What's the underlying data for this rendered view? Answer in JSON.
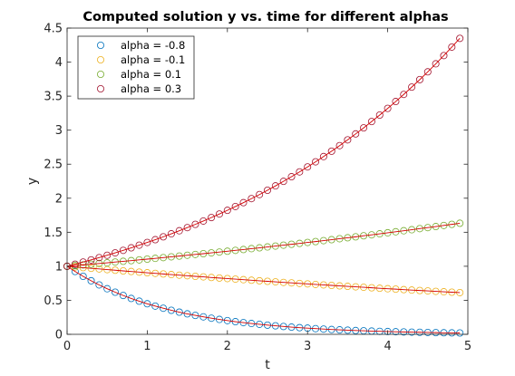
{
  "chart_data": {
    "type": "line",
    "title": "Computed solution y vs. time for different alphas",
    "xlabel": "t",
    "ylabel": "y",
    "xlim": [
      0,
      5
    ],
    "ylim": [
      0,
      4.5
    ],
    "xticks": [
      "0",
      "1",
      "2",
      "3",
      "4",
      "5"
    ],
    "yticks": [
      "0",
      "0.5",
      "1",
      "1.5",
      "2",
      "2.5",
      "3",
      "3.5",
      "4",
      "4.5"
    ],
    "grid": false,
    "legend_position": "top-left",
    "marker": "circle",
    "line_color": "#d40000",
    "t": [
      0.0,
      0.1,
      0.2,
      0.3,
      0.4,
      0.5,
      0.6,
      0.7,
      0.8,
      0.9,
      1.0,
      1.1,
      1.2,
      1.3,
      1.4,
      1.5,
      1.6,
      1.7,
      1.8,
      1.9,
      2.0,
      2.1,
      2.2,
      2.3,
      2.4,
      2.5,
      2.6,
      2.7,
      2.8,
      2.9,
      3.0,
      3.1,
      3.2,
      3.3,
      3.4,
      3.5,
      3.6,
      3.7,
      3.8,
      3.9,
      4.0,
      4.1,
      4.2,
      4.3,
      4.4,
      4.5,
      4.6,
      4.7,
      4.8,
      4.9
    ],
    "series": [
      {
        "name": "alpha = -0.8",
        "color": "#0072bd",
        "values": [
          1.0,
          0.923,
          0.852,
          0.787,
          0.726,
          0.67,
          0.619,
          0.571,
          0.527,
          0.487,
          0.449,
          0.415,
          0.383,
          0.353,
          0.326,
          0.301,
          0.278,
          0.257,
          0.237,
          0.219,
          0.202,
          0.186,
          0.172,
          0.159,
          0.147,
          0.135,
          0.125,
          0.115,
          0.106,
          0.098,
          0.091,
          0.084,
          0.077,
          0.071,
          0.066,
          0.061,
          0.056,
          0.052,
          0.048,
          0.044,
          0.041,
          0.038,
          0.035,
          0.032,
          0.03,
          0.027,
          0.025,
          0.023,
          0.021,
          0.02
        ]
      },
      {
        "name": "alpha = -0.1",
        "color": "#edb120",
        "values": [
          1.0,
          0.99,
          0.98,
          0.97,
          0.961,
          0.951,
          0.942,
          0.932,
          0.923,
          0.914,
          0.905,
          0.896,
          0.887,
          0.878,
          0.869,
          0.861,
          0.852,
          0.844,
          0.835,
          0.827,
          0.819,
          0.811,
          0.803,
          0.795,
          0.787,
          0.779,
          0.771,
          0.763,
          0.756,
          0.748,
          0.741,
          0.733,
          0.726,
          0.719,
          0.712,
          0.705,
          0.698,
          0.691,
          0.684,
          0.677,
          0.67,
          0.664,
          0.657,
          0.65,
          0.644,
          0.638,
          0.631,
          0.625,
          0.619,
          0.613
        ]
      },
      {
        "name": "alpha = 0.1",
        "color": "#77ac30",
        "values": [
          1.0,
          1.01,
          1.02,
          1.03,
          1.041,
          1.051,
          1.062,
          1.073,
          1.083,
          1.094,
          1.105,
          1.116,
          1.127,
          1.139,
          1.15,
          1.162,
          1.174,
          1.185,
          1.197,
          1.209,
          1.221,
          1.234,
          1.246,
          1.259,
          1.271,
          1.284,
          1.297,
          1.31,
          1.323,
          1.336,
          1.35,
          1.363,
          1.377,
          1.391,
          1.405,
          1.419,
          1.433,
          1.448,
          1.462,
          1.477,
          1.492,
          1.507,
          1.522,
          1.537,
          1.553,
          1.568,
          1.584,
          1.6,
          1.616,
          1.632
        ]
      },
      {
        "name": "alpha = 0.3",
        "color": "#a2142f",
        "values": [
          1.0,
          1.03,
          1.062,
          1.094,
          1.127,
          1.162,
          1.197,
          1.234,
          1.271,
          1.31,
          1.35,
          1.391,
          1.433,
          1.477,
          1.522,
          1.568,
          1.616,
          1.665,
          1.716,
          1.768,
          1.822,
          1.878,
          1.935,
          1.994,
          2.054,
          2.117,
          2.181,
          2.248,
          2.316,
          2.387,
          2.46,
          2.535,
          2.612,
          2.691,
          2.773,
          2.858,
          2.945,
          3.034,
          3.127,
          3.222,
          3.32,
          3.421,
          3.525,
          3.633,
          3.743,
          3.857,
          3.975,
          4.096,
          4.221,
          4.349
        ]
      }
    ]
  }
}
